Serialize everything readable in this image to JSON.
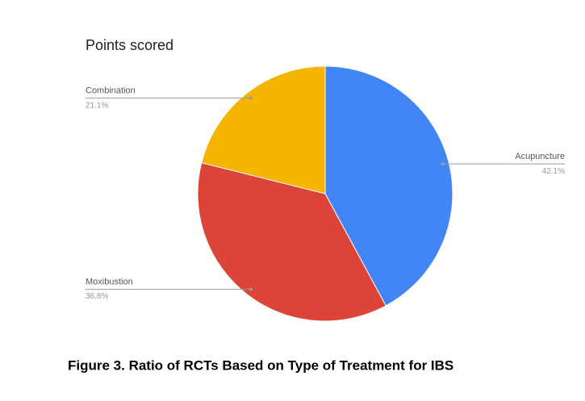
{
  "chart_data": {
    "type": "pie",
    "title": "Points scored",
    "caption": "Figure 3. Ratio of RCTs Based on Type of Treatment for IBS",
    "categories": [
      "Acupuncture",
      "Moxibustion",
      "Combination"
    ],
    "values": [
      42.1,
      36.8,
      21.1
    ],
    "value_labels": [
      "42.1%",
      "36.8%",
      "21.1%"
    ],
    "colors": [
      "#4285f4",
      "#db4437",
      "#f4b400"
    ]
  }
}
